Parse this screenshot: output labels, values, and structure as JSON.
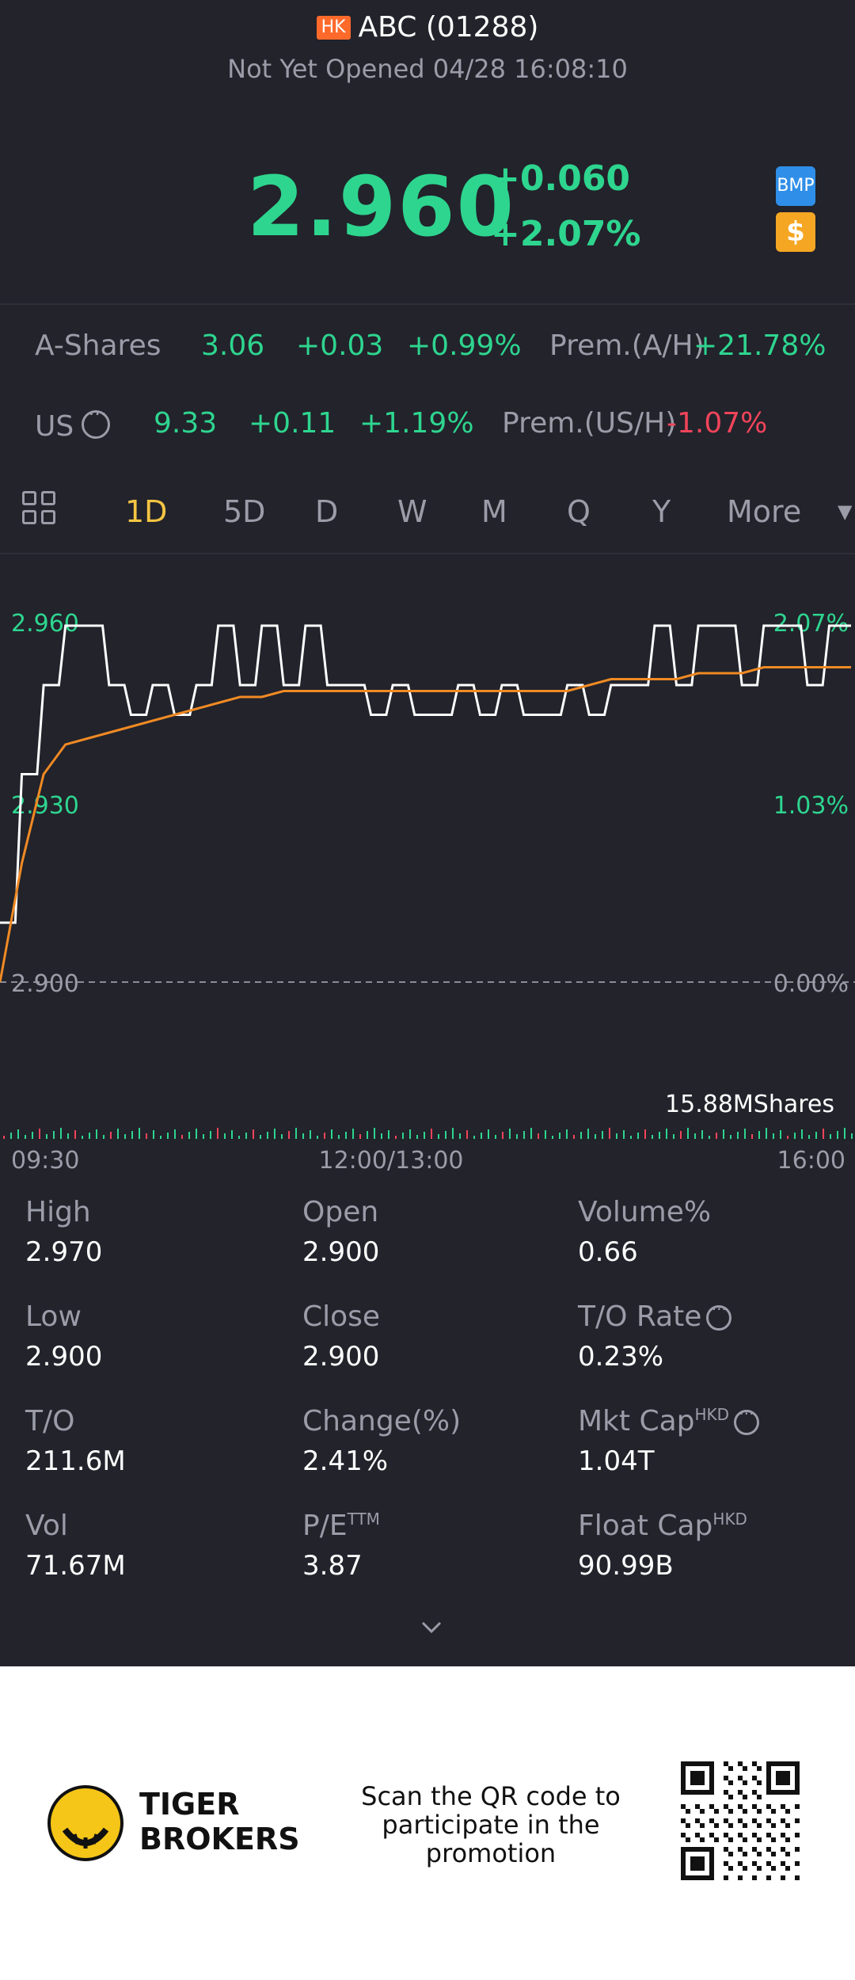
{
  "header": {
    "market_badge": "HK",
    "title": "ABC (01288)",
    "status": "Not Yet Opened 04/28 16:08:10"
  },
  "quote": {
    "price": "2.960",
    "change": "+0.060",
    "change_pct": "+2.07%",
    "badge_bmp": "BMP",
    "badge_dollar": "$"
  },
  "a_shares": {
    "label": "A-Shares",
    "price": "3.06",
    "change": "+0.03",
    "change_pct": "+0.99%",
    "prem_label": "Prem.(A/H)",
    "prem_value": "+21.78%"
  },
  "us": {
    "label": "US",
    "price": "9.33",
    "change": "+0.11",
    "change_pct": "+1.19%",
    "prem_label": "Prem.(US/H)",
    "prem_value": "-1.07%"
  },
  "tabs": [
    "1D",
    "5D",
    "D",
    "W",
    "M",
    "Q",
    "Y",
    "More"
  ],
  "chart_data": {
    "type": "line",
    "y_left_ticks": [
      "2.960",
      "2.930",
      "2.900"
    ],
    "y_right_ticks": [
      "2.07%",
      "1.03%",
      "0.00%"
    ],
    "x_ticks": [
      "09:30",
      "12:00/13:00",
      "16:00"
    ],
    "volume_label": "15.88MShares",
    "ylim": [
      2.9,
      2.96
    ],
    "series": [
      {
        "name": "price",
        "color": "#ffffff",
        "values": [
          2.91,
          2.935,
          2.95,
          2.96,
          2.96,
          2.95,
          2.945,
          2.95,
          2.945,
          2.95,
          2.96,
          2.95,
          2.96,
          2.95,
          2.96,
          2.95,
          2.95,
          2.945,
          2.95,
          2.945,
          2.945,
          2.95,
          2.945,
          2.95,
          2.945,
          2.945,
          2.95,
          2.945,
          2.95,
          2.95,
          2.96,
          2.95,
          2.96,
          2.96,
          2.95,
          2.96,
          2.96,
          2.95,
          2.96,
          2.96
        ]
      },
      {
        "name": "average",
        "color": "#f08a24",
        "values": [
          2.9,
          2.92,
          2.935,
          2.94,
          2.941,
          2.942,
          2.943,
          2.944,
          2.945,
          2.946,
          2.947,
          2.948,
          2.948,
          2.949,
          2.949,
          2.949,
          2.949,
          2.949,
          2.949,
          2.949,
          2.949,
          2.949,
          2.949,
          2.949,
          2.949,
          2.949,
          2.949,
          2.95,
          2.951,
          2.951,
          2.951,
          2.951,
          2.952,
          2.952,
          2.952,
          2.953,
          2.953,
          2.953,
          2.953,
          2.953
        ]
      }
    ]
  },
  "stats": [
    {
      "label": "High",
      "value": "2.970"
    },
    {
      "label": "Open",
      "value": "2.900"
    },
    {
      "label": "Volume%",
      "value": "0.66"
    },
    {
      "label": "Low",
      "value": "2.900"
    },
    {
      "label": "Close",
      "value": "2.900"
    },
    {
      "label": "T/O Rate",
      "value": "0.23%"
    },
    {
      "label": "T/O",
      "value": "211.6M"
    },
    {
      "label": "Change(%)",
      "value": "2.41%"
    },
    {
      "label": "Mkt Cap",
      "sup": "HKD",
      "value": "1.04T"
    },
    {
      "label": "Vol",
      "value": "71.67M"
    },
    {
      "label": "P/E",
      "sup": "TTM",
      "value": "3.87"
    },
    {
      "label": "Float Cap",
      "sup": "HKD",
      "value": "90.99B"
    }
  ],
  "promo": {
    "brand_line1": "TIGER",
    "brand_line2": "BROKERS",
    "text": "Scan the QR code to participate in the promotion"
  },
  "colors": {
    "up": "#2ed58f",
    "down": "#f0445a",
    "accent": "#f6c543",
    "bg": "#22232b"
  }
}
